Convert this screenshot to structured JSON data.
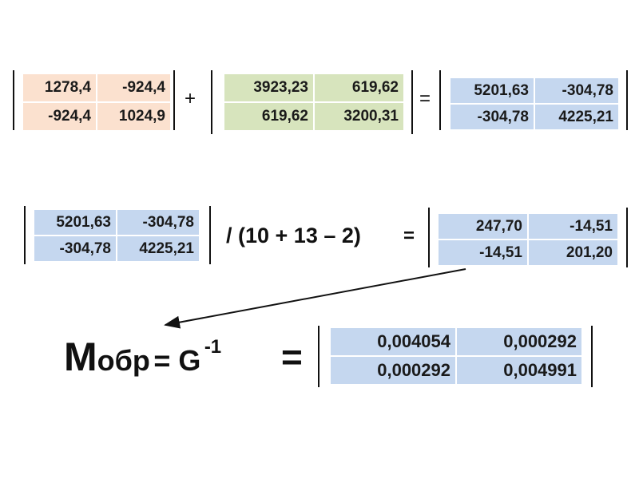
{
  "equation1": {
    "a": [
      [
        "1278,4",
        "-924,4"
      ],
      [
        "-924,4",
        "1024,9"
      ]
    ],
    "op1": "+",
    "b": [
      [
        "3923,23",
        "619,62"
      ],
      [
        "619,62",
        "3200,31"
      ]
    ],
    "op2": "=",
    "result": [
      [
        "5201,63",
        "-304,78"
      ],
      [
        "-304,78",
        "4225,21"
      ]
    ]
  },
  "equation2": {
    "a": [
      [
        "5201,63",
        "-304,78"
      ],
      [
        "-304,78",
        "4225,21"
      ]
    ],
    "divisor": "/ (10 + 13 – 2)",
    "op": "=",
    "result": [
      [
        "247,70",
        "-14,51"
      ],
      [
        "-14,51",
        "201,20"
      ]
    ]
  },
  "equation3": {
    "lhs": {
      "symbol": "M",
      "suffix": "обр",
      "equals": "= G",
      "superscript": "-1"
    },
    "op": "=",
    "result": [
      [
        "0,004054",
        "0,000292"
      ],
      [
        "0,000292",
        "0,004991"
      ]
    ]
  }
}
